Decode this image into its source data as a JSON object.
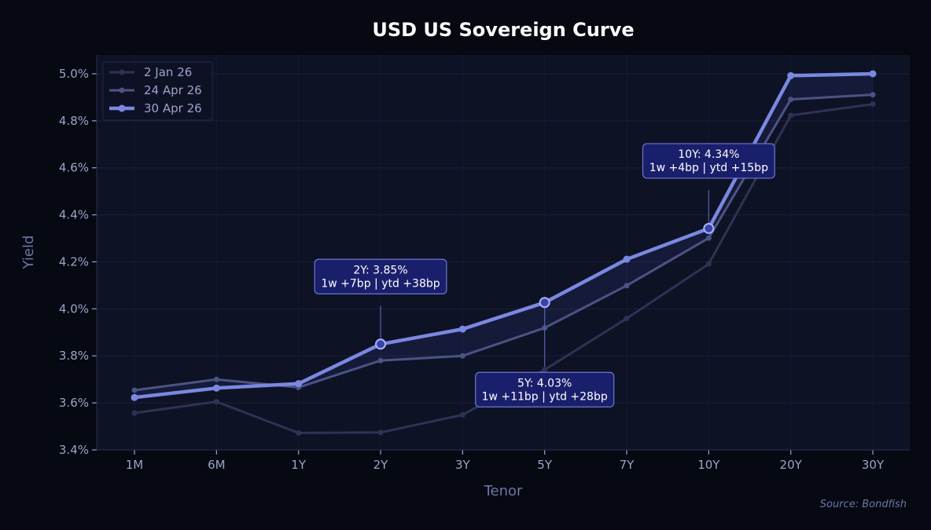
{
  "chart_data": {
    "type": "line",
    "title": "USD US Sovereign Curve",
    "xlabel": "Tenor",
    "ylabel": "Yield",
    "categories": [
      "1M",
      "6M",
      "1Y",
      "2Y",
      "3Y",
      "5Y",
      "7Y",
      "10Y",
      "20Y",
      "30Y"
    ],
    "ylim": [
      3.4,
      5.08
    ],
    "yticks": [
      "3.4%",
      "3.6%",
      "3.8%",
      "4.0%",
      "4.2%",
      "4.4%",
      "4.6%",
      "4.8%",
      "5.0%"
    ],
    "ytick_values": [
      3.4,
      3.6,
      3.8,
      4.0,
      4.2,
      4.4,
      4.6,
      4.8,
      5.0
    ],
    "grid": true,
    "legend_position": "top-left",
    "series": [
      {
        "name": "2 Jan 26",
        "color": "#2e3355",
        "values": [
          3.557,
          3.605,
          3.472,
          3.474,
          3.549,
          3.741,
          3.959,
          4.191,
          4.823,
          4.871
        ]
      },
      {
        "name": "24 Apr 26",
        "color": "#4b5384",
        "values": [
          3.654,
          3.7,
          3.666,
          3.78,
          3.8,
          3.919,
          4.099,
          4.301,
          4.891,
          4.911
        ]
      },
      {
        "name": "30 Apr 26",
        "color": "#7b88e0",
        "values": [
          3.623,
          3.663,
          3.682,
          3.85,
          3.914,
          4.027,
          4.211,
          4.342,
          4.992,
          5.0
        ]
      }
    ],
    "annotations": [
      {
        "tenor": "2Y",
        "line1": "2Y: 3.85%",
        "line2": "1w +7bp | ytd +38bp",
        "placement": "above"
      },
      {
        "tenor": "5Y",
        "line1": "5Y: 4.03%",
        "line2": "1w +11bp | ytd +28bp",
        "placement": "below"
      },
      {
        "tenor": "10Y",
        "line1": "10Y: 4.34%",
        "line2": "1w +4bp | ytd +15bp",
        "placement": "above"
      }
    ]
  },
  "source": "Source: Bondfish"
}
